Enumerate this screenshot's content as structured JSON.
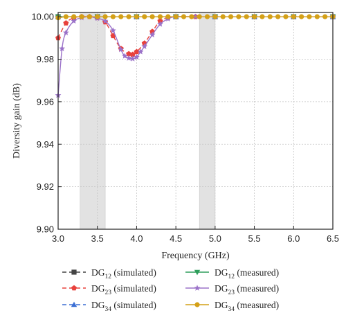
{
  "chart_data": {
    "type": "line",
    "xlabel": "Frequency (GHz)",
    "ylabel": "Diversity gain (dB)",
    "xlim": [
      3.0,
      6.5
    ],
    "ylim": [
      9.9,
      10.002
    ],
    "x_ticks": [
      "3.0",
      "3.5",
      "4.0",
      "4.5",
      "5.0",
      "5.5",
      "6.0",
      "6.5"
    ],
    "y_ticks": [
      "9.90",
      "9.92",
      "9.94",
      "9.96",
      "9.98",
      "10.00"
    ],
    "grid": true,
    "legend_placement": "bottom",
    "shaded_bands": [
      [
        3.28,
        3.6
      ],
      [
        4.8,
        5.0
      ]
    ],
    "series": [
      {
        "id": "dg12_sim",
        "name_main": "DG",
        "name_sub": "12",
        "name_rest": "(simulated)",
        "color": "#444444",
        "dash": "dash",
        "marker": "square",
        "x": [
          3.0,
          3.5,
          4.0,
          4.5,
          5.0,
          5.5,
          6.0,
          6.5
        ],
        "y": [
          10.0,
          10.0,
          10.0,
          10.0,
          10.0,
          10.0,
          10.0,
          10.0
        ]
      },
      {
        "id": "dg23_sim",
        "name_main": "DG",
        "name_sub": "23",
        "name_rest": "(simulated)",
        "color": "#e8413c",
        "dash": "dash",
        "marker": "pentagon",
        "x": [
          3.0,
          3.1,
          3.2,
          3.3,
          3.4,
          3.5,
          3.6,
          3.7,
          3.8,
          3.9,
          3.95,
          4.0,
          4.1,
          4.2,
          4.3,
          4.4,
          4.5,
          4.75,
          5.0,
          5.5,
          6.0,
          6.5
        ],
        "y": [
          9.99,
          9.997,
          9.9995,
          10.0,
          10.0,
          9.9995,
          9.9975,
          9.991,
          9.985,
          9.9825,
          9.9822,
          9.9835,
          9.9875,
          9.993,
          9.998,
          9.9995,
          10.0,
          10.0,
          10.0,
          10.0,
          10.0,
          10.0
        ]
      },
      {
        "id": "dg34_sim",
        "name_main": "DG",
        "name_sub": "34",
        "name_rest": "(simulated)",
        "color": "#3b6fd4",
        "dash": "dash",
        "marker": "triangle",
        "x": [
          3.0,
          3.5,
          4.0,
          4.5,
          5.0,
          5.5,
          6.0,
          6.5
        ],
        "y": [
          10.0,
          10.0,
          10.0,
          10.0,
          10.0,
          10.0,
          10.0,
          10.0
        ]
      },
      {
        "id": "dg12_meas",
        "name_main": "DG",
        "name_sub": "12",
        "name_rest": "(measured)",
        "color": "#2e9e5b",
        "dash": "solid",
        "marker": "triangle-down",
        "x": [
          3.0,
          3.5,
          4.0,
          4.5,
          5.0,
          5.5,
          6.0,
          6.5
        ],
        "y": [
          10.0,
          10.0,
          10.0,
          10.0,
          10.0,
          10.0,
          10.0,
          10.0
        ]
      },
      {
        "id": "dg23_meas",
        "name_main": "DG",
        "name_sub": "23",
        "name_rest": "(measured)",
        "color": "#9b72c9",
        "dash": "solid",
        "marker": "star",
        "x": [
          3.0,
          3.05,
          3.1,
          3.2,
          3.3,
          3.4,
          3.5,
          3.6,
          3.7,
          3.8,
          3.85,
          3.9,
          3.95,
          4.0,
          4.05,
          4.1,
          4.2,
          4.3,
          4.4,
          4.5,
          4.75,
          5.0,
          5.5,
          6.0,
          6.5
        ],
        "y": [
          9.963,
          9.985,
          9.9925,
          9.998,
          9.9995,
          10.0,
          9.9992,
          9.998,
          9.9935,
          9.9845,
          9.9815,
          9.9805,
          9.9802,
          9.981,
          9.9835,
          9.986,
          9.9915,
          9.9965,
          9.999,
          10.0,
          10.0,
          10.0,
          10.0,
          10.0,
          10.0
        ]
      },
      {
        "id": "dg34_meas",
        "name_main": "DG",
        "name_sub": "34",
        "name_rest": "(measured)",
        "color": "#d4a017",
        "dash": "solid",
        "marker": "circle",
        "x": [
          3.0,
          3.1,
          3.2,
          3.3,
          3.4,
          3.5,
          3.6,
          3.7,
          3.8,
          3.9,
          4.0,
          4.1,
          4.2,
          4.3,
          4.4,
          4.5,
          4.6,
          4.7,
          4.8,
          4.9,
          5.0,
          5.1,
          5.2,
          5.3,
          5.4,
          5.5,
          5.6,
          5.7,
          5.8,
          5.9,
          6.0,
          6.1,
          6.2,
          6.3,
          6.4,
          6.5
        ],
        "y": [
          9.9995,
          10.0,
          10.0,
          10.0,
          10.0,
          10.0,
          10.0,
          10.0,
          10.0,
          10.0,
          10.0,
          10.0,
          10.0,
          10.0,
          10.0,
          10.0,
          10.0,
          10.0,
          10.0,
          10.0,
          10.0,
          10.0,
          10.0,
          10.0,
          10.0,
          10.0,
          10.0,
          10.0,
          10.0,
          10.0,
          10.0,
          10.0,
          10.0,
          10.0,
          10.0,
          10.0
        ]
      }
    ]
  }
}
